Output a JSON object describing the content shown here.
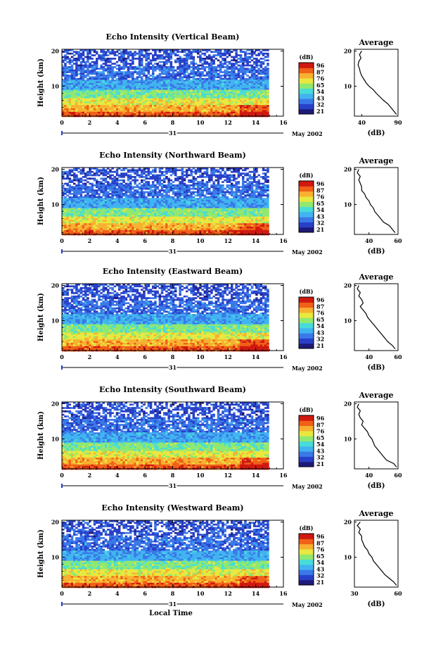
{
  "figure": {
    "xlabel": "Local Time",
    "date_label": "May 2002",
    "day_label": "31",
    "profile_title": "Average",
    "profile_xlabel": "(dB)",
    "colorbar_unit": "(dB)"
  },
  "colors": {
    "colormap": [
      "#1e1a78",
      "#2840c8",
      "#3a78e8",
      "#40b4f0",
      "#48dcd8",
      "#90e870",
      "#e8e840",
      "#f8b030",
      "#f06018",
      "#d01810"
    ]
  },
  "chart_data": [
    {
      "type": "heatmap",
      "title": "Echo Intensity (Vertical Beam)",
      "ylabel": "Height (km)",
      "x_ticks": [
        "0",
        "2",
        "4",
        "6",
        "8",
        "10",
        "12",
        "14",
        "16"
      ],
      "y_ticks": [
        "10",
        "20"
      ],
      "xlim": [
        0,
        16
      ],
      "ylim": [
        1.5,
        20.5
      ],
      "data_x_end": 14.8,
      "colorbar_ticks": [
        "96",
        "87",
        "76",
        "65",
        "54",
        "43",
        "32",
        "21"
      ],
      "profile": {
        "xlim": [
          30,
          90
        ],
        "x_ticks": [
          "40",
          "90"
        ],
        "y_ticks": [
          "10",
          "20"
        ],
        "heights": [
          2,
          3,
          4,
          5,
          6,
          7,
          8,
          9,
          10,
          11,
          12,
          13,
          14,
          15,
          16,
          17,
          18,
          19,
          20
        ],
        "values": [
          88,
          84,
          80,
          76,
          70,
          65,
          60,
          56,
          50,
          46,
          43,
          40,
          38,
          37,
          35,
          36,
          39,
          37,
          40
        ]
      },
      "profile_tick_labels": [
        "40",
        "90"
      ]
    },
    {
      "type": "heatmap",
      "title": "Echo Intensity (Northward Beam)",
      "ylabel": "Height (km)",
      "x_ticks": [
        "0",
        "2",
        "4",
        "6",
        "8",
        "10",
        "12",
        "14",
        "16"
      ],
      "y_ticks": [
        "10",
        "20"
      ],
      "xlim": [
        0,
        16
      ],
      "ylim": [
        1.5,
        20.5
      ],
      "data_x_end": 14.8,
      "colorbar_ticks": [
        "96",
        "87",
        "76",
        "65",
        "54",
        "43",
        "32",
        "21"
      ],
      "profile": {
        "xlim": [
          30,
          60
        ],
        "x_ticks": [
          "40",
          "60"
        ],
        "y_ticks": [
          "10",
          "20"
        ],
        "heights": [
          2,
          3,
          4,
          5,
          6,
          7,
          8,
          9,
          10,
          11,
          12,
          13,
          14,
          15,
          16,
          17,
          18,
          19,
          20
        ],
        "values": [
          58,
          56,
          54,
          50,
          48,
          46,
          44,
          43,
          41,
          40,
          38,
          37,
          35,
          35,
          34,
          33,
          34,
          32,
          33
        ]
      },
      "profile_tick_labels": [
        "40",
        "60"
      ]
    },
    {
      "type": "heatmap",
      "title": "Echo Intensity (Eastward Beam)",
      "ylabel": "Height (km)",
      "x_ticks": [
        "0",
        "2",
        "4",
        "6",
        "8",
        "10",
        "12",
        "14",
        "16"
      ],
      "y_ticks": [
        "10",
        "20"
      ],
      "xlim": [
        0,
        16
      ],
      "ylim": [
        1.5,
        20.5
      ],
      "data_x_end": 14.8,
      "colorbar_ticks": [
        "96",
        "87",
        "76",
        "65",
        "54",
        "43",
        "32",
        "21"
      ],
      "profile": {
        "xlim": [
          30,
          60
        ],
        "x_ticks": [
          "40",
          "60"
        ],
        "y_ticks": [
          "10",
          "20"
        ],
        "heights": [
          2,
          3,
          4,
          5,
          6,
          7,
          8,
          9,
          10,
          11,
          12,
          13,
          14,
          15,
          16,
          17,
          18,
          19,
          20
        ],
        "values": [
          58,
          56,
          53,
          51,
          49,
          47,
          45,
          43,
          41,
          39,
          38,
          36,
          34,
          36,
          35,
          33,
          34,
          32,
          33
        ]
      },
      "profile_tick_labels": [
        "40",
        "60"
      ]
    },
    {
      "type": "heatmap",
      "title": "Echo Intensity (Southward Beam)",
      "ylabel": "Height (km)",
      "x_ticks": [
        "0",
        "2",
        "4",
        "6",
        "8",
        "10",
        "12",
        "14",
        "16"
      ],
      "y_ticks": [
        "10",
        "20"
      ],
      "xlim": [
        0,
        16
      ],
      "ylim": [
        1.5,
        20.5
      ],
      "data_x_end": 14.8,
      "colorbar_ticks": [
        "96",
        "87",
        "76",
        "65",
        "54",
        "43",
        "32",
        "21"
      ],
      "profile": {
        "xlim": [
          30,
          60
        ],
        "x_ticks": [
          "40",
          "60"
        ],
        "y_ticks": [
          "10",
          "20"
        ],
        "heights": [
          2,
          3,
          4,
          5,
          6,
          7,
          8,
          9,
          10,
          11,
          12,
          13,
          14,
          15,
          16,
          17,
          18,
          19,
          20
        ],
        "values": [
          59,
          57,
          52,
          50,
          48,
          46,
          44,
          43,
          42,
          40,
          39,
          37,
          35,
          36,
          34,
          33,
          34,
          32,
          33
        ]
      },
      "profile_tick_labels": [
        "40",
        "60"
      ]
    },
    {
      "type": "heatmap",
      "title": "Echo Intensity (Westward Beam)",
      "ylabel": "Height (km)",
      "x_ticks": [
        "0",
        "2",
        "4",
        "6",
        "8",
        "10",
        "12",
        "14",
        "16"
      ],
      "y_ticks": [
        "10",
        "20"
      ],
      "xlim": [
        0,
        16
      ],
      "ylim": [
        1.5,
        20.5
      ],
      "data_x_end": 14.8,
      "colorbar_ticks": [
        "96",
        "87",
        "76",
        "65",
        "54",
        "43",
        "32",
        "21"
      ],
      "profile": {
        "xlim": [
          30,
          60
        ],
        "x_ticks": [
          "30",
          "60"
        ],
        "y_ticks": [
          "10",
          "20"
        ],
        "heights": [
          2,
          3,
          4,
          5,
          6,
          7,
          8,
          9,
          10,
          11,
          12,
          13,
          14,
          15,
          16,
          17,
          18,
          19,
          20
        ],
        "values": [
          59,
          57,
          54,
          51,
          49,
          47,
          45,
          43,
          42,
          40,
          39,
          37,
          36,
          35,
          35,
          33,
          34,
          32,
          34
        ]
      },
      "profile_tick_labels": [
        "30",
        "60"
      ]
    }
  ]
}
